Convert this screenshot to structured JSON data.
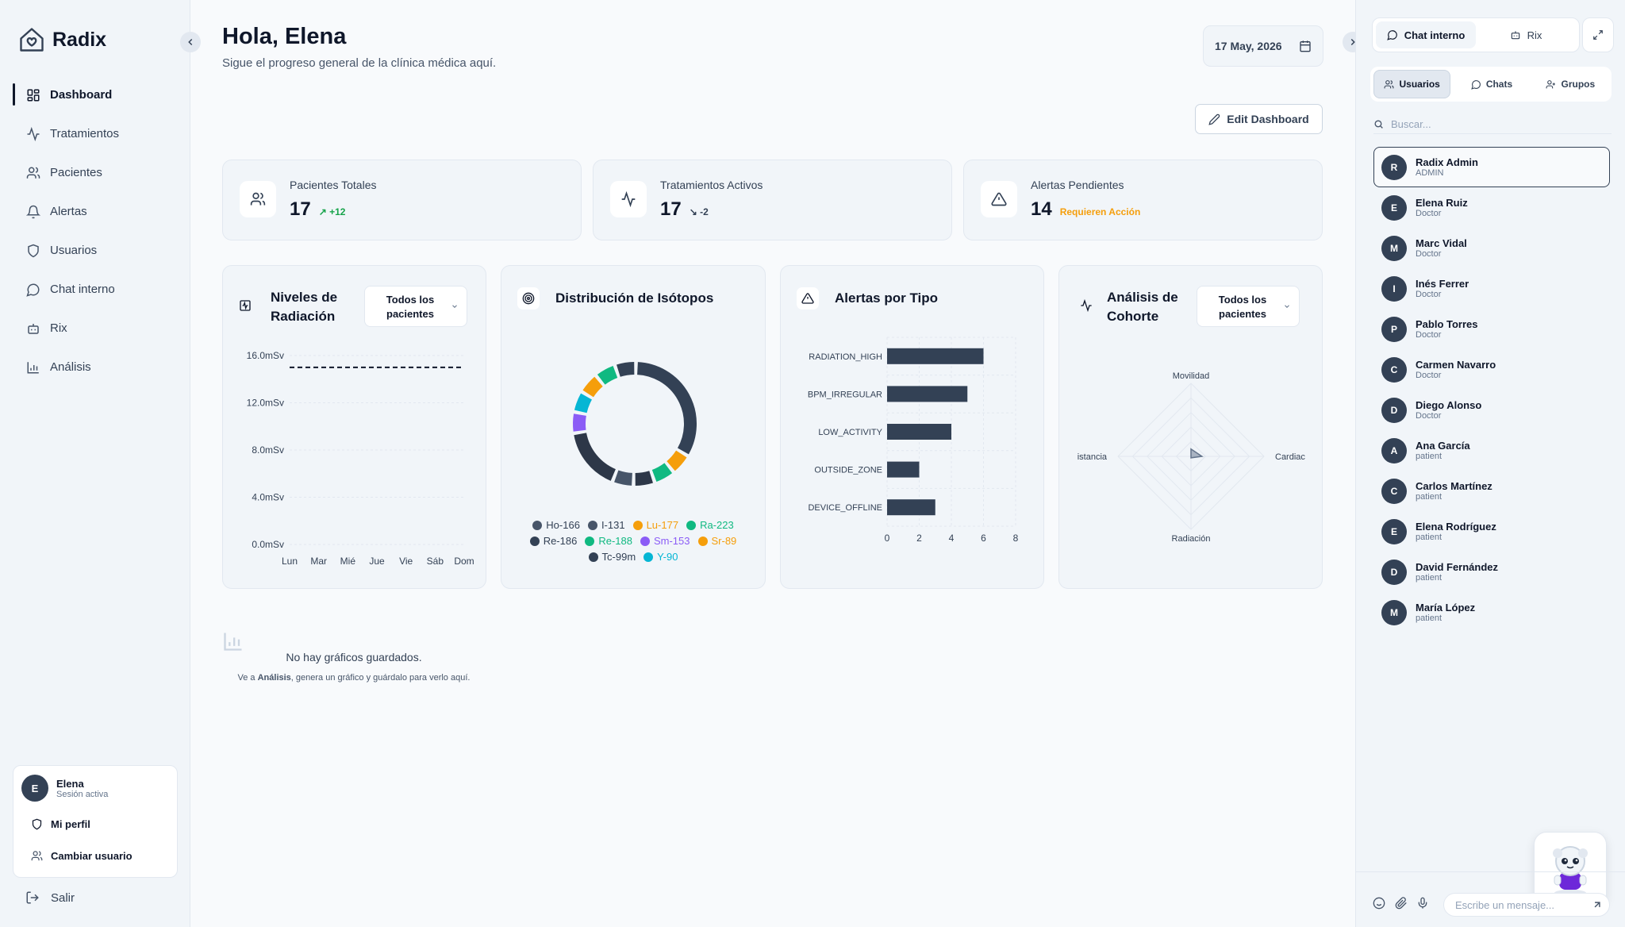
{
  "app": {
    "name": "Radix"
  },
  "sidebar": {
    "items": [
      {
        "label": "Dashboard",
        "icon": "dashboard-icon",
        "active": true
      },
      {
        "label": "Tratamientos",
        "icon": "activity-icon"
      },
      {
        "label": "Pacientes",
        "icon": "users-icon"
      },
      {
        "label": "Alertas",
        "icon": "bell-icon"
      },
      {
        "label": "Usuarios",
        "icon": "shield-icon"
      },
      {
        "label": "Chat interno",
        "icon": "message-icon"
      },
      {
        "label": "Rix",
        "icon": "bot-icon"
      },
      {
        "label": "Análisis",
        "icon": "bar-chart-icon"
      }
    ],
    "user": {
      "initial": "E",
      "name": "Elena",
      "status": "Sesión activa",
      "profile": "Mi perfil",
      "switch": "Cambiar usuario"
    },
    "logout": "Salir"
  },
  "header": {
    "title": "Hola, Elena",
    "subtitle": "Sigue el progreso general de la clínica médica aquí.",
    "date": "17 May, 2026",
    "edit": "Edit Dashboard"
  },
  "stats": [
    {
      "label": "Pacientes Totales",
      "value": "17",
      "delta": "+12",
      "delta_color": "#16a34a"
    },
    {
      "label": "Tratamientos Activos",
      "value": "17",
      "delta": "-2",
      "delta_color": "#334155"
    },
    {
      "label": "Alertas Pendientes",
      "value": "14",
      "delta": "Requieren Acción",
      "delta_color": "#f59e0b"
    }
  ],
  "charts": {
    "radiation": {
      "title": "Niveles de Radiación",
      "filter": "Todos los pacientes"
    },
    "isotopes": {
      "title": "Distribución de Isótopos"
    },
    "alerts": {
      "title": "Alertas por Tipo"
    },
    "cohort": {
      "title": "Análisis de Cohorte",
      "filter": "Todos los pacientes"
    }
  },
  "chart_data": [
    {
      "type": "line",
      "x": [
        "Lun",
        "Mar",
        "Mié",
        "Jue",
        "Vie",
        "Sáb",
        "Dom"
      ],
      "ylim": [
        0,
        16
      ],
      "yticks": [
        "0.0mSv",
        "4.0mSv",
        "8.0mSv",
        "12.0mSv",
        "16.0mSv"
      ],
      "reference_line": 15,
      "reference_style": "dashed",
      "series": [],
      "grid": true
    },
    {
      "type": "pie",
      "labels": [
        "Ho-166",
        "I-131",
        "Lu-177",
        "Ra-223",
        "Re-186",
        "Re-188",
        "Sm-153",
        "Sr-89",
        "Tc-99m",
        "Y-90"
      ],
      "segment_values": [
        6,
        1,
        1,
        1,
        1,
        3,
        1,
        1,
        1,
        1,
        1
      ],
      "segment_labels": [
        "Tc-99m",
        "Lu-177",
        "Ra-223",
        "Re-186",
        "I-131",
        "Re-186",
        "Sm-153",
        "Y-90",
        "Sr-89",
        "Ra-223",
        "Ho-166"
      ],
      "colors": {
        "Ho-166": "#334155",
        "I-131": "#475569",
        "Lu-177": "#f59e0b",
        "Ra-223": "#10b981",
        "Re-186": "#2d3748",
        "Re-188": "#10b981",
        "Sm-153": "#8b5cf6",
        "Sr-89": "#f59e0b",
        "Tc-99m": "#334155",
        "Y-90": "#06b6d4"
      },
      "legend_colors": {
        "Ho-166": "#475569",
        "I-131": "#475569",
        "Lu-177": "#f59e0b",
        "Ra-223": "#10b981",
        "Re-186": "#334155",
        "Re-188": "#10b981",
        "Sm-153": "#8b5cf6",
        "Sr-89": "#f59e0b",
        "Tc-99m": "#334155",
        "Y-90": "#06b6d4"
      }
    },
    {
      "type": "bar",
      "orientation": "horizontal",
      "categories": [
        "RADIATION_HIGH",
        "BPM_IRREGULAR",
        "LOW_ACTIVITY",
        "OUTSIDE_ZONE",
        "DEVICE_OFFLINE"
      ],
      "values": [
        6,
        5,
        4,
        2,
        3
      ],
      "xlim": [
        0,
        8
      ],
      "xticks": [
        "0",
        "2",
        "4",
        "6",
        "8"
      ],
      "color": "#334155",
      "grid": true
    },
    {
      "type": "radar",
      "axes": [
        "Movilidad",
        "Cardiac",
        "Radiación",
        "istancia"
      ],
      "values": [
        0.1,
        0.15,
        0.02,
        0.0
      ],
      "color": "#64748b"
    }
  ],
  "empty_state": {
    "title": "No hay gráficos guardados.",
    "pre": "Ve a ",
    "bold": "Análisis",
    "post": ", genera un gráfico y guárdalo para verlo aquí."
  },
  "right_panel": {
    "tabs": [
      "Chat interno",
      "Rix"
    ],
    "subtabs": [
      "Usuarios",
      "Chats",
      "Grupos"
    ],
    "search_placeholder": "Buscar...",
    "users": [
      {
        "initial": "R",
        "name": "Radix Admin",
        "role": "ADMIN",
        "selected": true
      },
      {
        "initial": "E",
        "name": "Elena Ruiz",
        "role": "Doctor"
      },
      {
        "initial": "M",
        "name": "Marc Vidal",
        "role": "Doctor"
      },
      {
        "initial": "I",
        "name": "Inés Ferrer",
        "role": "Doctor"
      },
      {
        "initial": "P",
        "name": "Pablo Torres",
        "role": "Doctor"
      },
      {
        "initial": "C",
        "name": "Carmen Navarro",
        "role": "Doctor"
      },
      {
        "initial": "D",
        "name": "Diego Alonso",
        "role": "Doctor"
      },
      {
        "initial": "A",
        "name": "Ana García",
        "role": "patient"
      },
      {
        "initial": "C",
        "name": "Carlos Martínez",
        "role": "patient"
      },
      {
        "initial": "E",
        "name": "Elena Rodríguez",
        "role": "patient"
      },
      {
        "initial": "D",
        "name": "David Fernández",
        "role": "patient"
      },
      {
        "initial": "M",
        "name": "María López",
        "role": "patient"
      }
    ],
    "message_placeholder": "Escribe un mensaje..."
  }
}
